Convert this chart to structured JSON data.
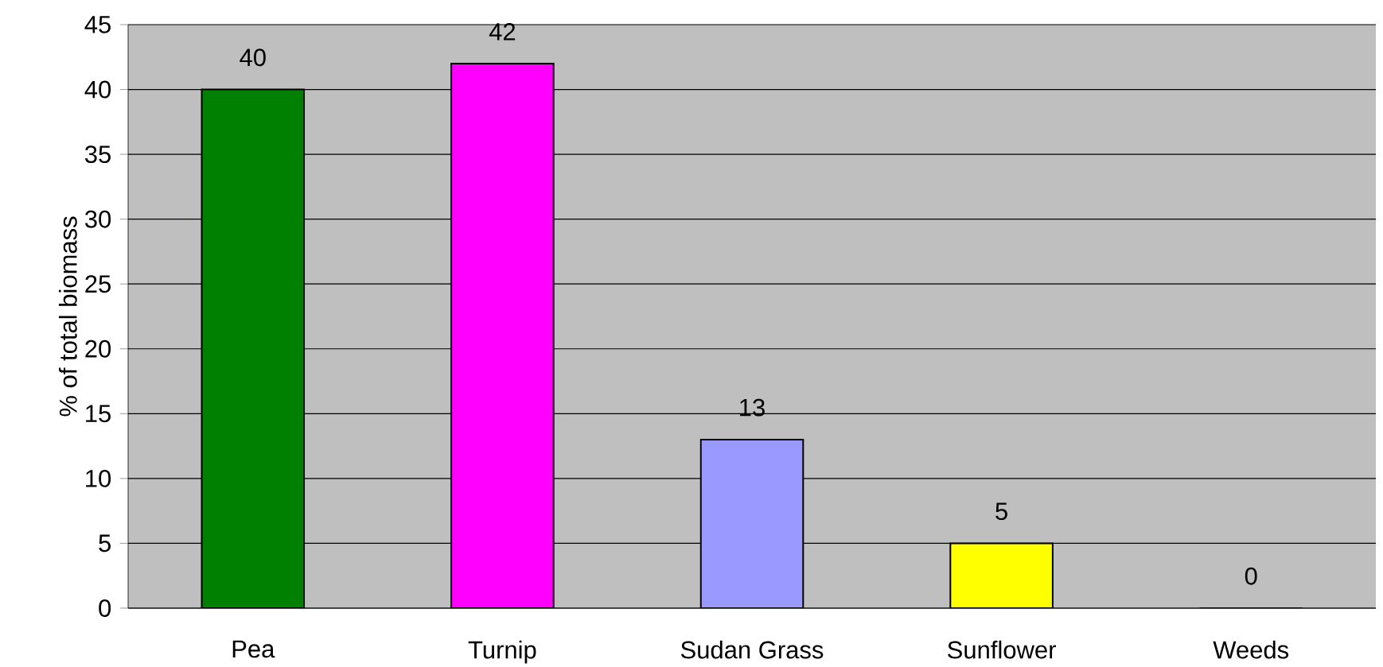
{
  "chart_data": {
    "type": "bar",
    "ylabel": "% of total biomass",
    "categories": [
      "Pea",
      "Turnip",
      "Sudan Grass",
      "Sunflower",
      "Weeds"
    ],
    "values": [
      40,
      42,
      13,
      5,
      0
    ],
    "colors": [
      "#008000",
      "#ff00ff",
      "#9999ff",
      "#ffff00",
      "#000000"
    ],
    "ylim": [
      0,
      45
    ],
    "yticks": [
      0,
      5,
      10,
      15,
      20,
      25,
      30,
      35,
      40,
      45
    ],
    "grid": "y",
    "data_labels": true
  }
}
